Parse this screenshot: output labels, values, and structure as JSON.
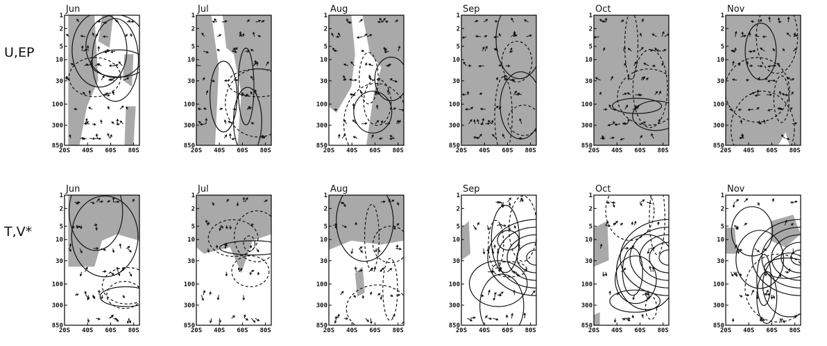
{
  "chart_data": {
    "type": "contour-vector-panel-grid",
    "rows": [
      {
        "label": "U,EP",
        "panels": [
          {
            "month": "Jun"
          },
          {
            "month": "Jul"
          },
          {
            "month": "Aug"
          },
          {
            "month": "Sep"
          },
          {
            "month": "Oct"
          },
          {
            "month": "Nov"
          }
        ]
      },
      {
        "label": "T,V*",
        "panels": [
          {
            "month": "Jun"
          },
          {
            "month": "Jul"
          },
          {
            "month": "Aug"
          },
          {
            "month": "Sep"
          },
          {
            "month": "Oct"
          },
          {
            "month": "Nov"
          }
        ]
      }
    ],
    "x_axis": {
      "ticks": [
        20,
        40,
        60,
        80
      ],
      "tick_labels": [
        "20S",
        "40S",
        "60S",
        "80S"
      ],
      "range": [
        20,
        85
      ]
    },
    "y_axis": {
      "ticks": [
        1,
        2,
        5,
        10,
        30,
        100,
        300,
        850
      ],
      "tick_labels": [
        "1",
        "2",
        "5",
        "10",
        "30",
        "100",
        "300",
        "850"
      ],
      "scale": "log",
      "inverted": true,
      "range": [
        1,
        850
      ]
    },
    "colors": {
      "shading": "#a9a9a9",
      "lines": "#111111",
      "background": "#ffffff"
    }
  }
}
